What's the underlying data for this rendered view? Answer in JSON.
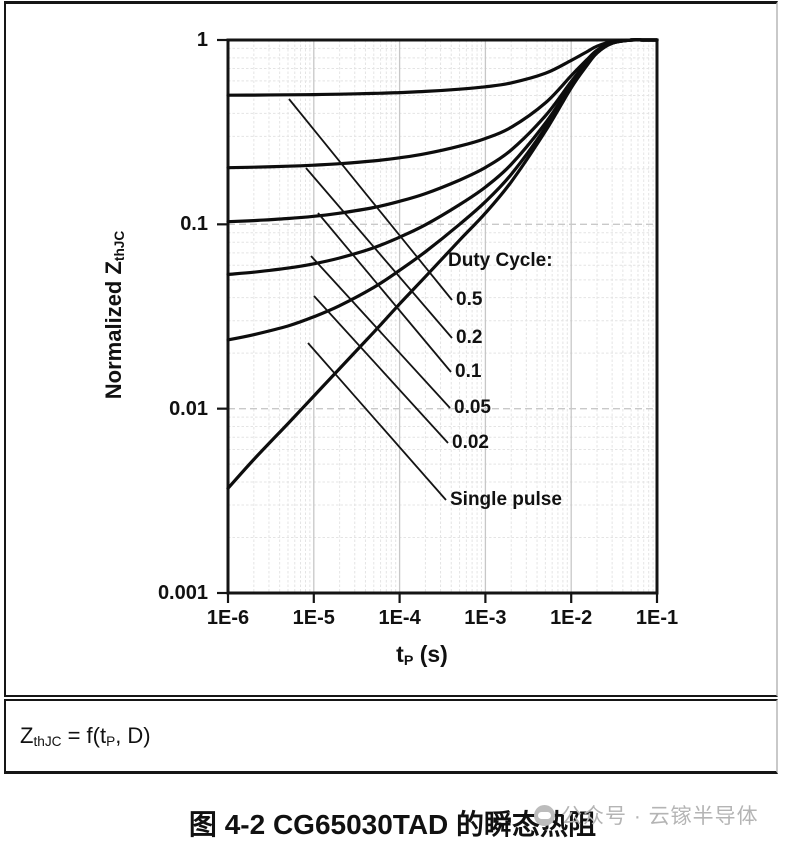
{
  "chart": {
    "ylabel_segments": [
      {
        "t": "Normalized Z"
      },
      {
        "s": "thJC"
      }
    ],
    "xlabel_segments": [
      {
        "t": "t"
      },
      {
        "s": "P"
      },
      {
        "t": " (s)"
      }
    ]
  },
  "chart_data": {
    "type": "line",
    "title": "",
    "x_scale": "log",
    "y_scale": "log",
    "xlim": [
      1e-06,
      0.1
    ],
    "ylim": [
      0.001,
      1
    ],
    "xlabel": "tP (s)",
    "ylabel": "Normalized ZthJC",
    "grid": true,
    "legend_position": "inline-annotations",
    "annotation_header": "Duty Cycle:",
    "x_tick_labels": [
      "1E-6",
      "1E-5",
      "1E-4",
      "1E-3",
      "1E-2",
      "1E-1"
    ],
    "y_tick_labels": [
      "1",
      "0.1",
      "0.01",
      "0.001"
    ],
    "x": [
      1e-06,
      2e-06,
      5e-06,
      1e-05,
      2e-05,
      5e-05,
      0.0001,
      0.0002,
      0.0005,
      0.001,
      0.002,
      0.005,
      0.01,
      0.015,
      0.02,
      0.03,
      0.05,
      0.07,
      0.1
    ],
    "series": [
      {
        "name": "0.5",
        "duty_cycle": 0.5,
        "values": [
          0.5019,
          0.5027,
          0.5042,
          0.5059,
          0.5083,
          0.513,
          0.5185,
          0.526,
          0.541,
          0.5575,
          0.585,
          0.66,
          0.775,
          0.86,
          0.925,
          0.98,
          1.0,
          1.0,
          1.0
        ]
      },
      {
        "name": "0.2",
        "duty_cycle": 0.2,
        "values": [
          0.203,
          0.2042,
          0.2066,
          0.2094,
          0.2132,
          0.2208,
          0.2296,
          0.2416,
          0.2656,
          0.292,
          0.336,
          0.456,
          0.64,
          0.776,
          0.88,
          0.968,
          1.0,
          1.0,
          1.0
        ]
      },
      {
        "name": "0.1",
        "duty_cycle": 0.1,
        "values": [
          0.1033,
          0.1048,
          0.1075,
          0.1105,
          0.1149,
          0.1234,
          0.1333,
          0.1468,
          0.1738,
          0.2035,
          0.253,
          0.388,
          0.595,
          0.748,
          0.865,
          0.964,
          1.0,
          1.0,
          1.0
        ]
      },
      {
        "name": "0.05",
        "duty_cycle": 0.05,
        "values": [
          0.0535,
          0.055,
          0.0579,
          0.0611,
          0.0657,
          0.0747,
          0.0852,
          0.0994,
          0.1279,
          0.1593,
          0.2115,
          0.354,
          0.5725,
          0.734,
          0.8575,
          0.962,
          1.0,
          1.0,
          1.0
        ]
      },
      {
        "name": "0.02",
        "duty_cycle": 0.02,
        "values": [
          0.0236,
          0.0252,
          0.0281,
          0.0315,
          0.0362,
          0.0455,
          0.0563,
          0.071,
          0.1,
          0.1327,
          0.1866,
          0.3336,
          0.559,
          0.7256,
          0.853,
          0.9608,
          1.0,
          1.0,
          1.0
        ]
      },
      {
        "name": "Single pulse",
        "duty_cycle": null,
        "values": [
          0.0037,
          0.0053,
          0.0083,
          0.0117,
          0.0165,
          0.026,
          0.037,
          0.052,
          0.082,
          0.115,
          0.17,
          0.32,
          0.55,
          0.72,
          0.85,
          0.96,
          1.0,
          1.0,
          1.0
        ]
      }
    ]
  },
  "formula": {
    "segments": [
      {
        "t": "Z"
      },
      {
        "s": "thJC"
      },
      {
        "t": " = f(t"
      },
      {
        "s": "P"
      },
      {
        "t": ", D)"
      }
    ]
  },
  "caption": "图 4-2 CG65030TAD 的瞬态热阻",
  "watermark": "公众号 · 云镓半导体"
}
